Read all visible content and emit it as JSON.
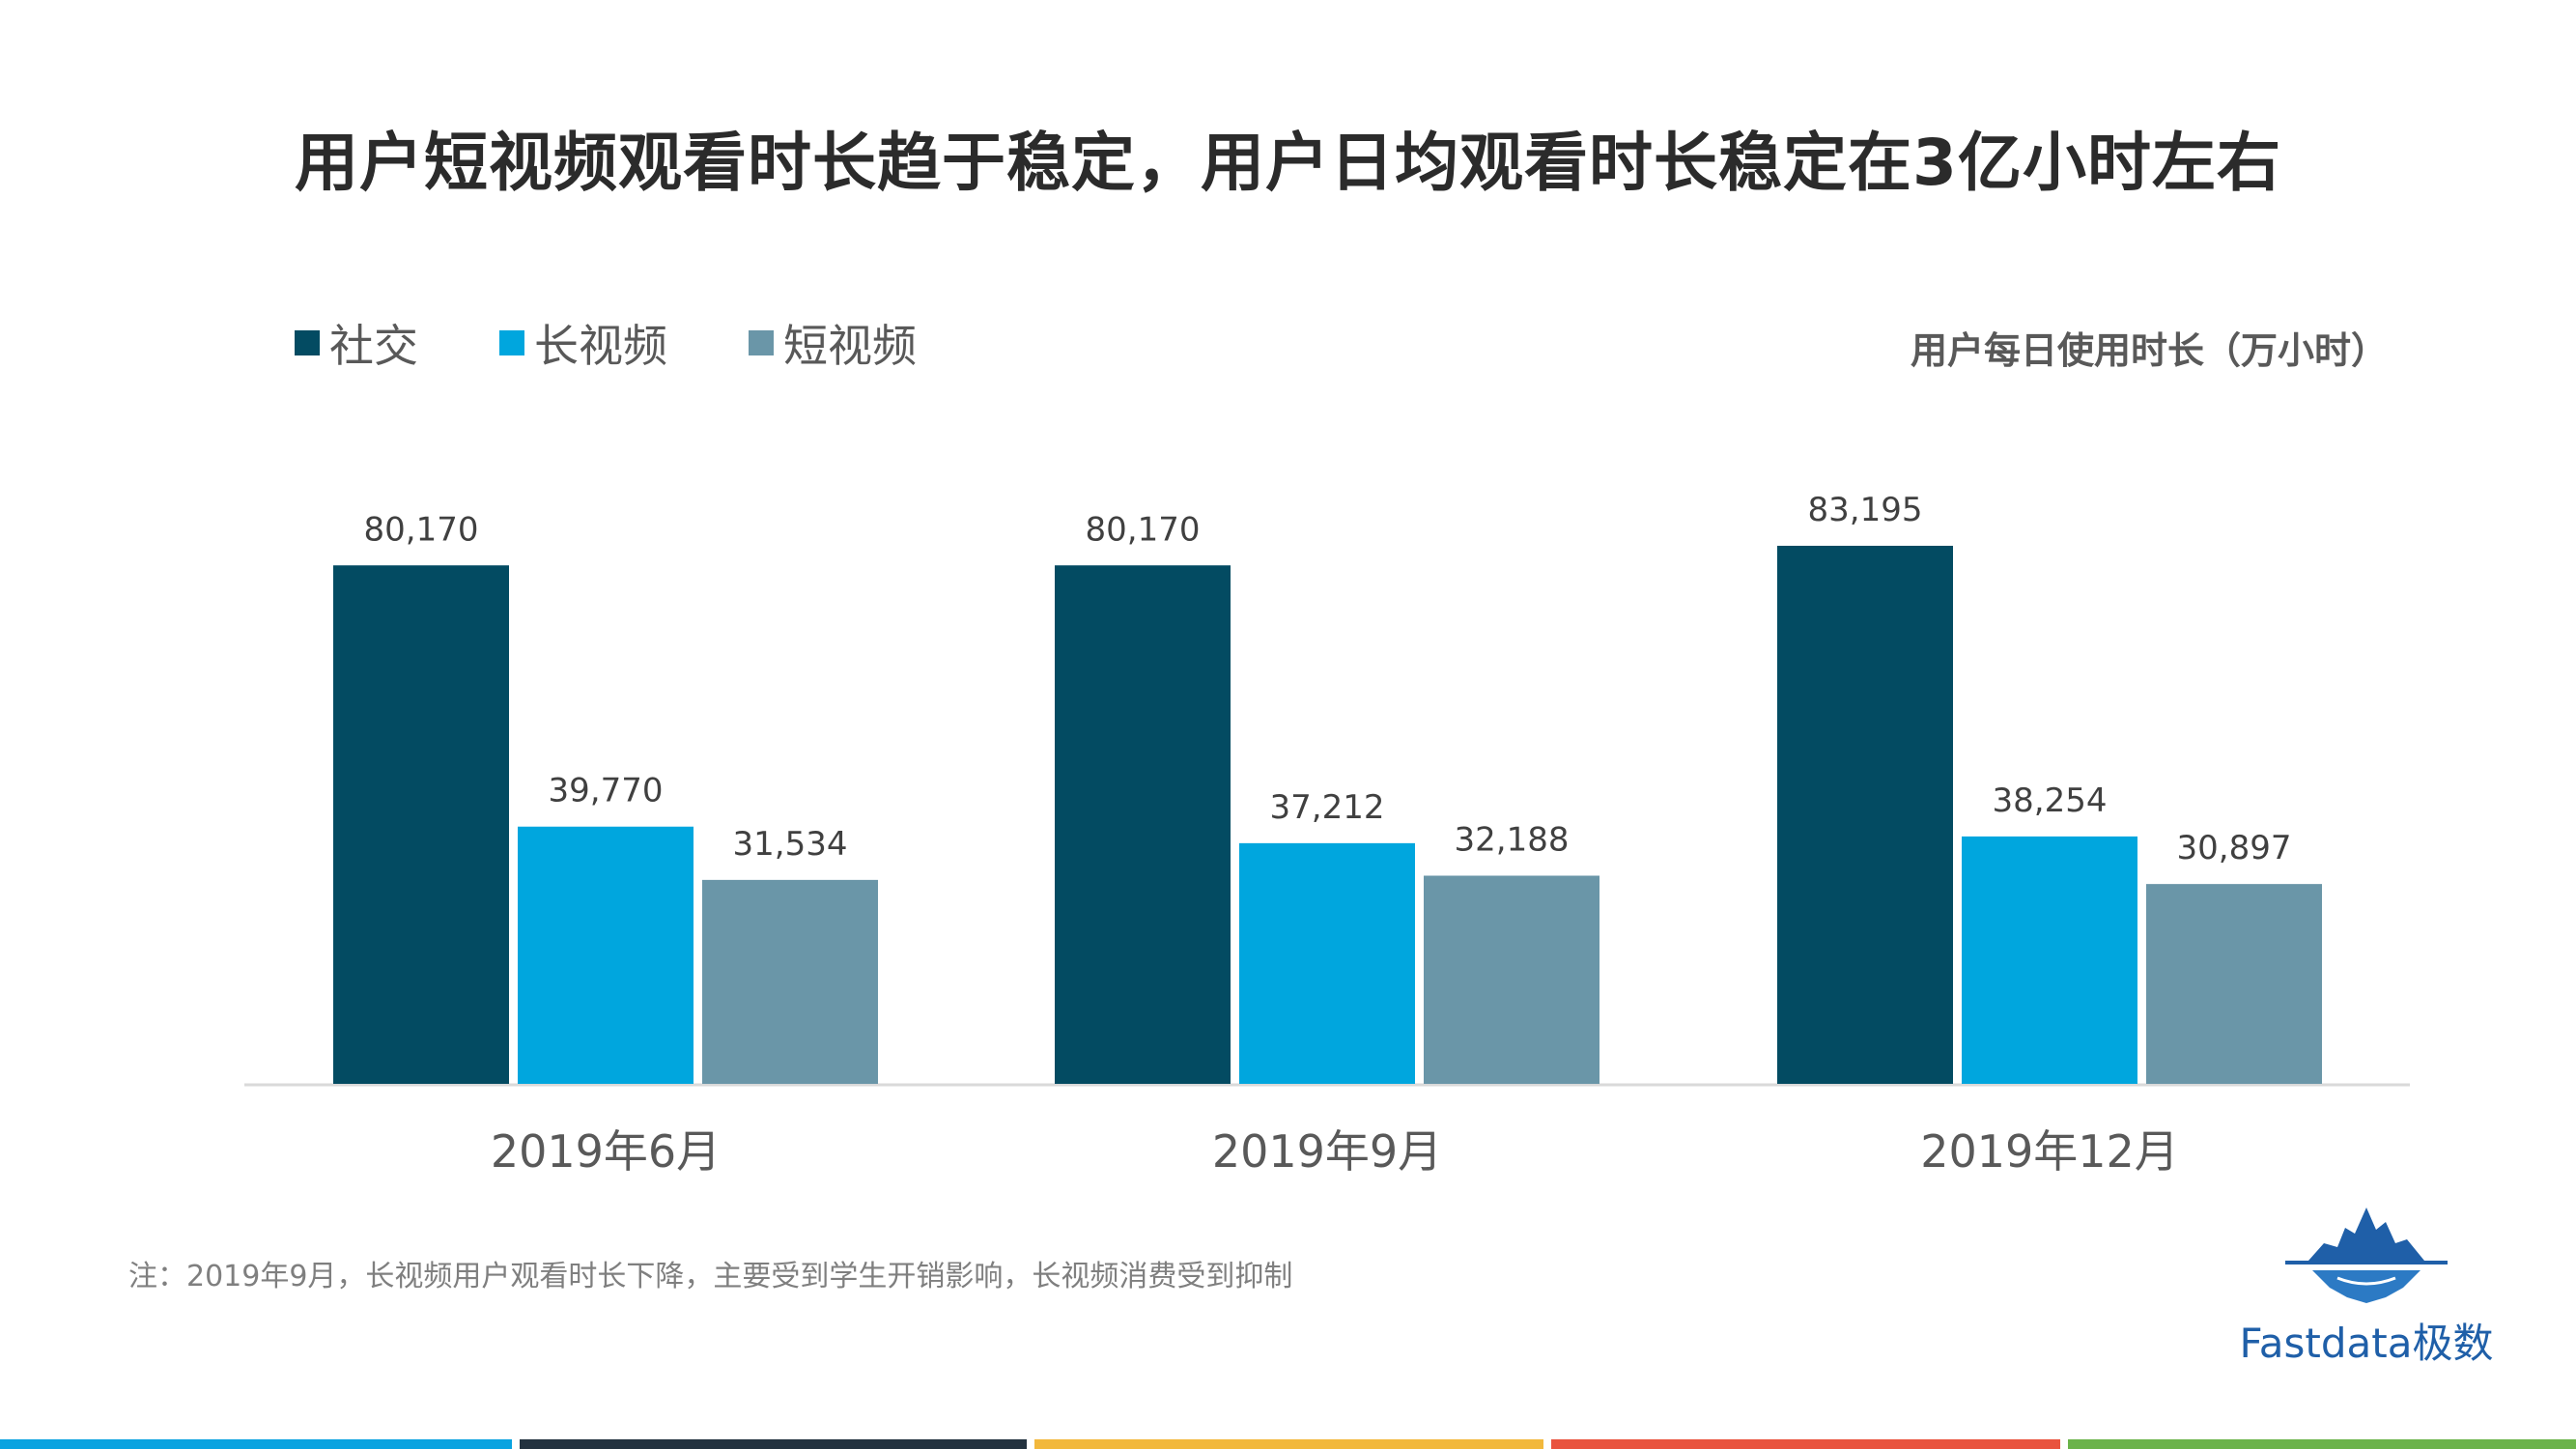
{
  "title": "用户短视频观看时长趋于稳定，用户日均观看时长稳定在3亿小时左右",
  "unit_label": "用户每日使用时长（万小时）",
  "note": "注：2019年9月，长视频用户观看时长下降，主要受到学生开销影响，长视频消费受到抑制",
  "logo": {
    "text": "Fastdata极数",
    "icon": "iceberg-logo-icon"
  },
  "colors": {
    "social": "#034b62",
    "long_video": "#00a6de",
    "short_video": "#6a96a8",
    "axis": "#d9d9d9",
    "label": "#404040",
    "footer": [
      "#0aa3e0",
      "#23323f",
      "#f2b83c",
      "#e9533e",
      "#6bb34a"
    ]
  },
  "chart_data": {
    "type": "bar",
    "categories": [
      "2019年6月",
      "2019年9月",
      "2019年12月"
    ],
    "series": [
      {
        "name": "社交",
        "values": [
          80170,
          80170,
          83195
        ]
      },
      {
        "name": "长视频",
        "values": [
          39770,
          37212,
          38254
        ]
      },
      {
        "name": "短视频",
        "values": [
          31534,
          32188,
          30897
        ]
      }
    ],
    "value_labels": [
      [
        "80,170",
        "80,170",
        "83,195"
      ],
      [
        "39,770",
        "37,212",
        "38,254"
      ],
      [
        "31,534",
        "32,188",
        "30,897"
      ]
    ],
    "ylim": [
      0,
      83195
    ],
    "grid": false,
    "legend_position": "top-left"
  }
}
